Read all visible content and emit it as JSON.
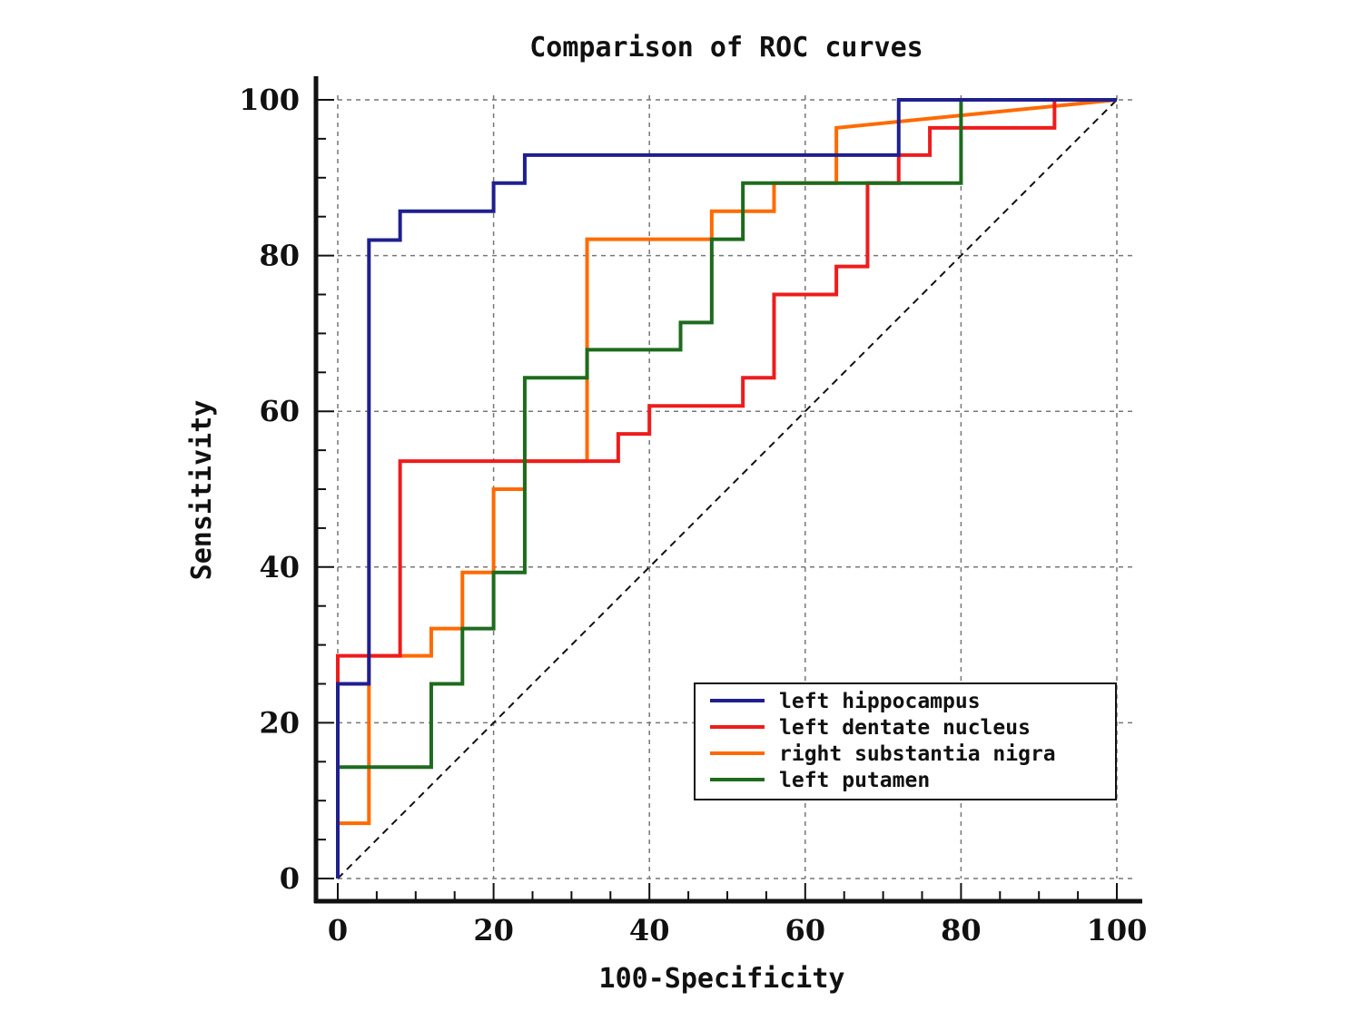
{
  "chart_data": {
    "type": "line",
    "title": "Comparison of ROC curves",
    "xlabel": "100-Specificity",
    "ylabel": "Sensitivity",
    "xlim": [
      0,
      100
    ],
    "ylim": [
      0,
      100
    ],
    "xticks": [
      "0",
      "20",
      "40",
      "60",
      "80",
      "100"
    ],
    "yticks": [
      "0",
      "20",
      "40",
      "60",
      "80",
      "100"
    ],
    "grid": true,
    "legend_position": "bottom-right",
    "reference_line": {
      "x": [
        0,
        100
      ],
      "y": [
        0,
        100
      ],
      "style": "dashed",
      "color": "#000000"
    },
    "series": [
      {
        "name": "left hippocampus",
        "color": "#1f1f8f",
        "x": [
          0,
          0,
          4,
          4,
          8,
          8,
          20,
          20,
          24,
          24,
          72,
          72,
          100
        ],
        "y": [
          0,
          25,
          25,
          82,
          82,
          85.7,
          85.7,
          89.3,
          89.3,
          92.9,
          92.9,
          100,
          100
        ]
      },
      {
        "name": "left dentate nucleus",
        "color": "#ee1c1c",
        "x": [
          0,
          0,
          8,
          8,
          36,
          36,
          40,
          40,
          52,
          52,
          56,
          56,
          64,
          64,
          68,
          68,
          72,
          72,
          76,
          76,
          92,
          92,
          100
        ],
        "y": [
          0,
          28.6,
          28.6,
          53.6,
          53.6,
          57.1,
          57.1,
          60.7,
          60.7,
          64.3,
          64.3,
          75,
          75,
          78.6,
          78.6,
          89.3,
          89.3,
          92.9,
          92.9,
          96.4,
          96.4,
          100,
          100
        ]
      },
      {
        "name": "right substantia nigra",
        "color": "#ff6a00",
        "x": [
          0,
          0,
          4,
          4,
          12,
          12,
          16,
          16,
          20,
          20,
          24,
          24,
          32,
          32,
          48,
          48,
          56,
          56,
          64,
          64,
          100
        ],
        "y": [
          0,
          7.1,
          7.1,
          28.6,
          28.6,
          32.1,
          32.1,
          39.3,
          39.3,
          50,
          50,
          53.6,
          53.6,
          82.1,
          82.1,
          85.7,
          85.7,
          89.3,
          89.3,
          96.4,
          100
        ]
      },
      {
        "name": "left putamen",
        "color": "#1e6b1e",
        "x": [
          0,
          0,
          12,
          12,
          16,
          16,
          20,
          20,
          24,
          24,
          32,
          32,
          44,
          44,
          48,
          48,
          52,
          52,
          80,
          80,
          100
        ],
        "y": [
          0,
          14.3,
          14.3,
          25,
          25,
          32.1,
          32.1,
          39.3,
          39.3,
          64.3,
          64.3,
          67.9,
          67.9,
          71.4,
          71.4,
          82.1,
          82.1,
          89.3,
          89.3,
          100,
          100
        ]
      }
    ]
  }
}
